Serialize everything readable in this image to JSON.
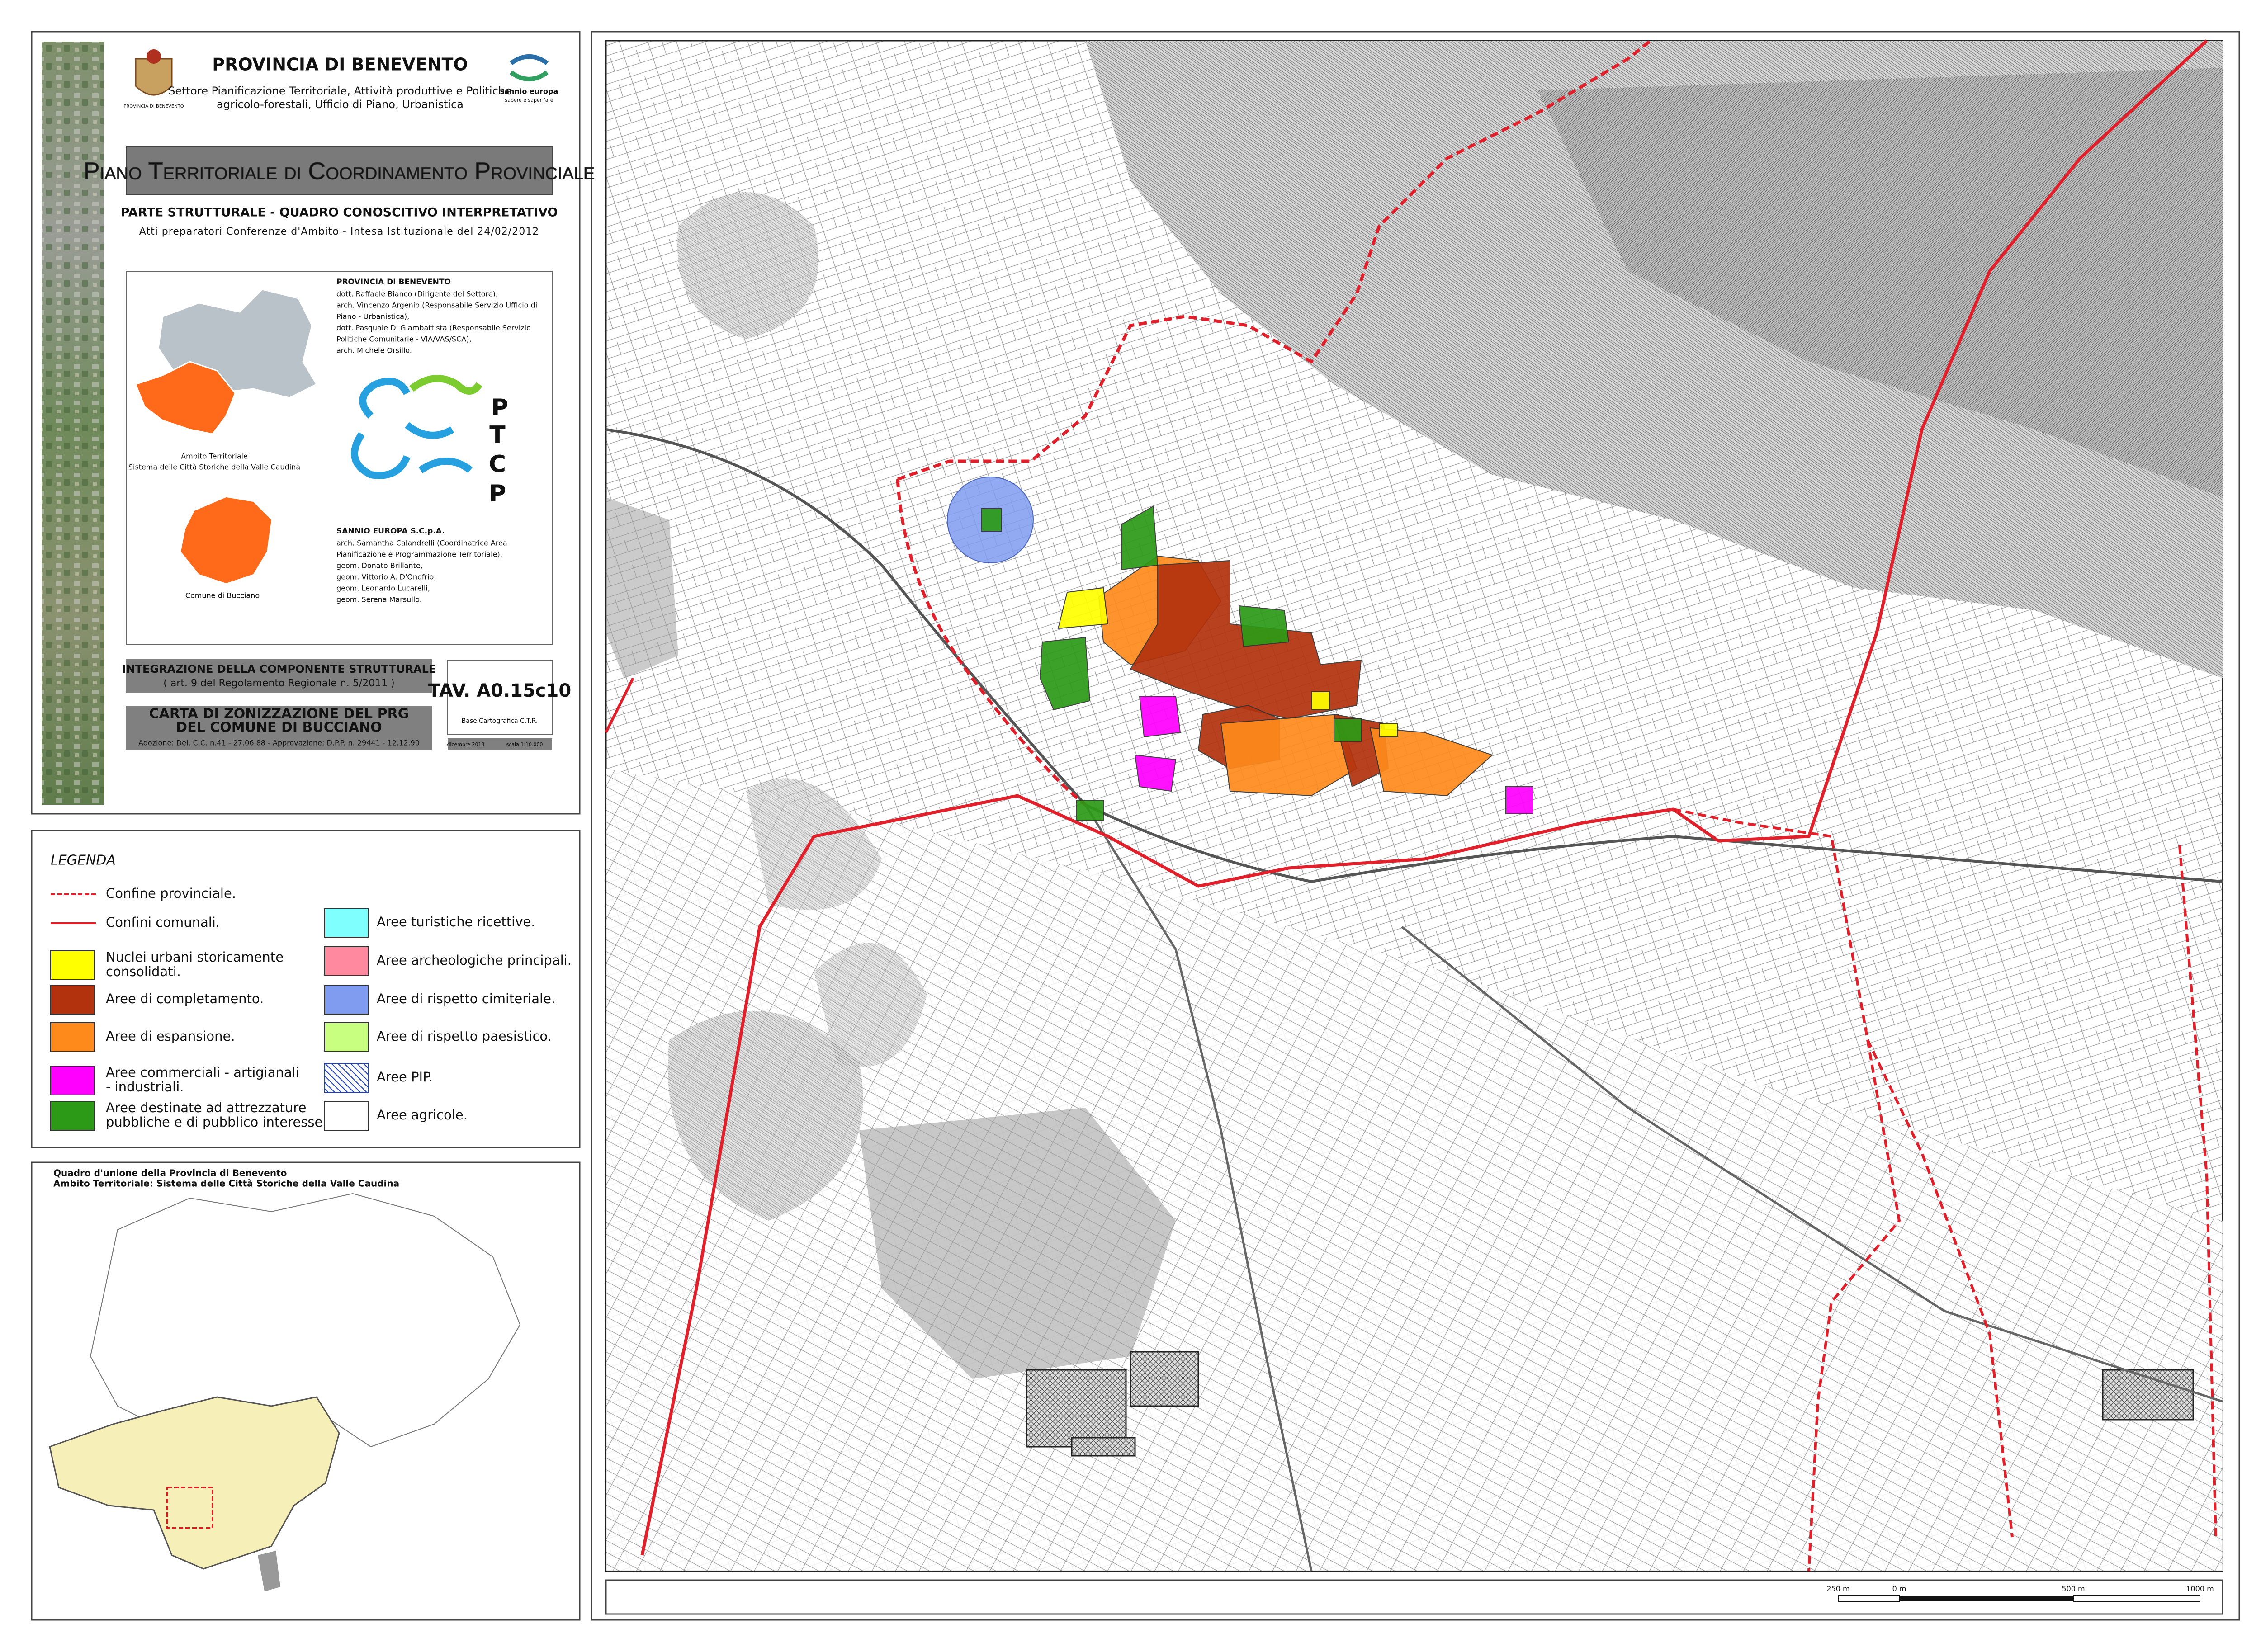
{
  "header": {
    "organization": "PROVINCIA DI BENEVENTO",
    "department": [
      "Settore Pianificazione Territoriale, Attività produttive e Politiche",
      "agricolo-forestali, Ufficio di Piano, Urbanistica"
    ],
    "emblem_caption": "PROVINCIA DI BENEVENTO",
    "partner_name": "sannio europa",
    "partner_tagline": "sapere e saper fare",
    "plan_title": "Piano Territoriale di Coordinamento Provinciale",
    "section": "PARTE STRUTTURALE - QUADRO CONOSCITIVO INTERPRETATIVO",
    "subtitle": "Atti preparatori Conferenze d'Ambito - Intesa Istituzionale del 24/02/2012"
  },
  "credits": {
    "provincia": {
      "title": "PROVINCIA DI BENEVENTO",
      "lines": [
        "dott. Raffaele Bianco (Dirigente del Settore),",
        "arch. Vincenzo Argenio (Responsabile Servizio Ufficio di",
        "Piano - Urbanistica),",
        "dott. Pasquale Di Giambattista (Responsabile Servizio",
        "Politiche Comunitarie - VIA/VAS/SCA),",
        "arch. Michele Orsillo."
      ]
    },
    "sannio": {
      "title": "SANNIO EUROPA S.C.p.A.",
      "lines": [
        "arch. Samantha Calandrelli (Coordinatrice Area",
        "Pianificazione e Programmazione Territoriale),",
        "geom. Donato Brillante,",
        "geom. Vittorio A. D'Onofrio,",
        "geom. Leonardo Lucarelli,",
        "geom. Serena Marsullo."
      ]
    }
  },
  "inset_maps": {
    "ambito_label": "Ambito Territoriale",
    "ambito_name": "Sistema delle Città Storiche della Valle Caudina",
    "comune_label": "Comune di Bucciano",
    "logo_letters": [
      "P",
      "T",
      "C",
      "P"
    ]
  },
  "sheet": {
    "integration_title": "INTEGRAZIONE DELLA COMPONENTE STRUTTURALE",
    "integration_note": "( art. 9 del Regolamento Regionale n. 5/2011 )",
    "map_title": [
      "CARTA DI ZONIZZAZIONE DEL PRG",
      "DEL COMUNE DI BUCCIANO"
    ],
    "approval": "Adozione: Del. C.C. n.41 - 27.06.88 - Approvazione: D.P.P. n. 29441 - 12.12.90",
    "table_code": "TAV. A0.15c10",
    "base": "Base Cartografica C.T.R.",
    "date": "dicembre 2013",
    "scale": "scala 1:10.000"
  },
  "legend": {
    "title": "LEGENDA",
    "lines": [
      {
        "label": "Confine provinciale.",
        "color": "#e0202a",
        "dashed": true
      },
      {
        "label": "Confini comunali.",
        "color": "#e0202a",
        "dashed": false
      }
    ],
    "left": [
      {
        "label": [
          "Nuclei urbani storicamente",
          "consolidati."
        ],
        "color": "#ffff00"
      },
      {
        "label": [
          "Aree di completamento."
        ],
        "color": "#b3320e"
      },
      {
        "label": [
          "Aree di espansione."
        ],
        "color": "#ff8a1c"
      },
      {
        "label": [
          "Aree commerciali - artigianali",
          "- industriali."
        ],
        "color": "#ff00ff"
      },
      {
        "label": [
          "Aree destinate ad attrezzature",
          "pubbliche e di pubblico interesse."
        ],
        "color": "#2c9a16"
      }
    ],
    "right": [
      {
        "label": [
          "Aree turistiche ricettive."
        ],
        "color": "#80ffff"
      },
      {
        "label": [
          "Aree archeologiche principali."
        ],
        "color": "#ff8aa0"
      },
      {
        "label": [
          "Aree di rispetto cimiteriale."
        ],
        "color": "#7f9cf0"
      },
      {
        "label": [
          "Aree di rispetto paesistico."
        ],
        "color": "#c8ff80"
      },
      {
        "label": [
          "Aree PIP."
        ],
        "color": "#2040c0",
        "hatched": true
      },
      {
        "label": [
          "Aree agricole."
        ],
        "color": "#ffffff"
      }
    ]
  },
  "overview": {
    "title": "Quadro d'unione della Provincia di Benevento",
    "subtitle": "Ambito Territoriale: Sistema delle Città Storiche della Valle Caudina"
  },
  "scale_bar": {
    "labels": [
      "250 m",
      "0 m",
      "500 m",
      "1000 m"
    ]
  }
}
